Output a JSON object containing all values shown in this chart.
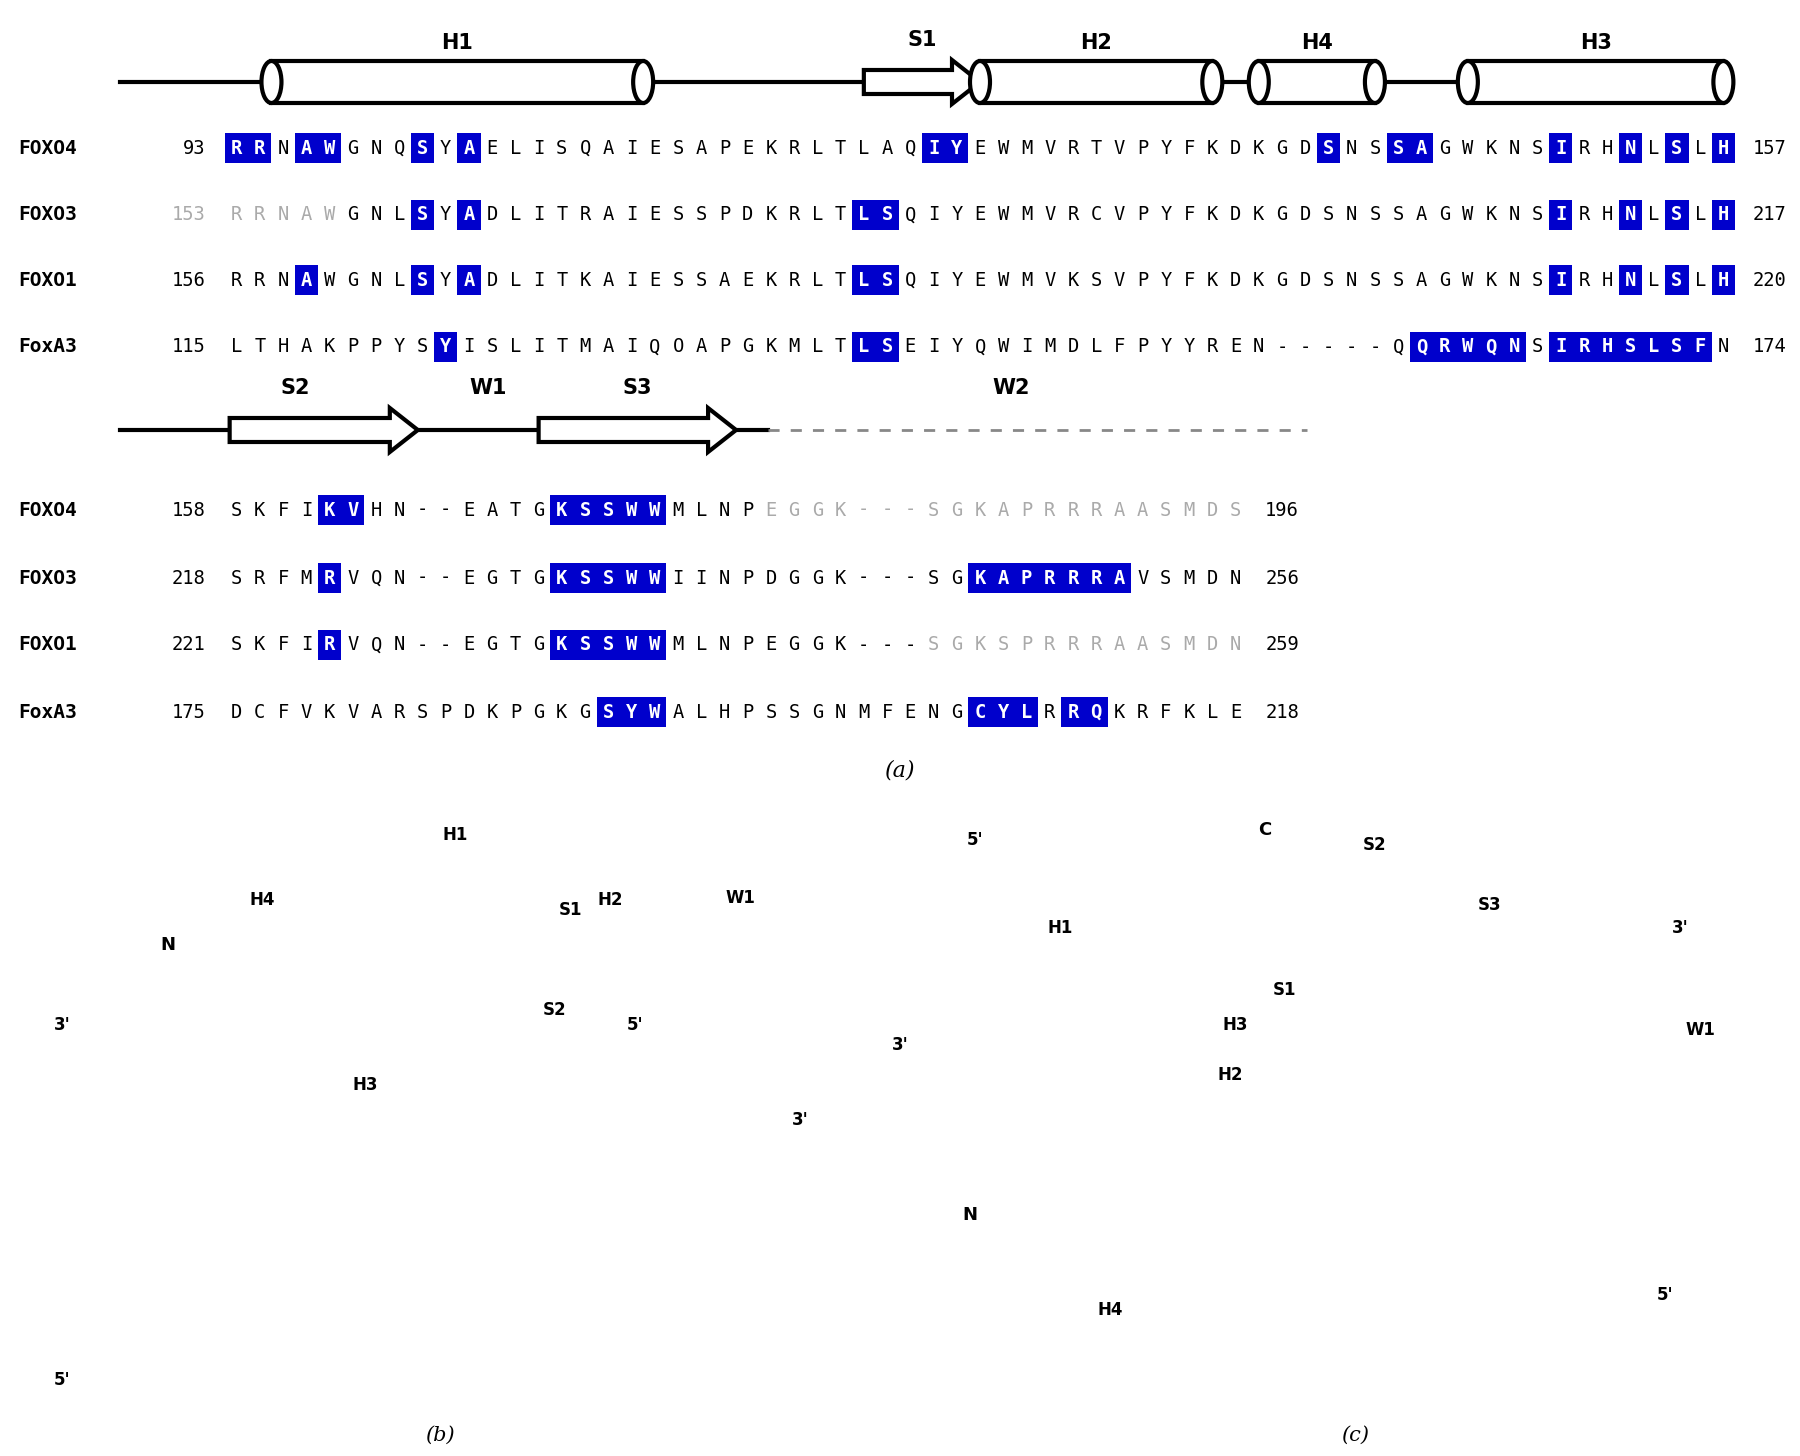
{
  "fig_width": 18.0,
  "fig_height": 14.56,
  "background_color": "#ffffff",
  "row1_seqs": [
    {
      "name": "FOXO4",
      "start": "93",
      "end": "157",
      "seq": "RRNAWGNQSYAELISQAIESAPEKRLTLAQIYEWMVRTVPYFKDKGDSNSSAGWKNSIRHNLSLH",
      "blue": [
        0,
        1,
        3,
        4,
        8,
        10,
        30,
        31,
        47,
        50,
        51,
        57,
        60,
        62,
        64
      ],
      "gray": [],
      "num_gray": false
    },
    {
      "name": "FOXO3",
      "start": "153",
      "end": "217",
      "seq": "RRNAWGNLSYADLITRAIESSPDKRLTLSQIYEWMVRCVPYFKDKGDSNSSAGWKNSIRHNLSLH",
      "blue": [
        8,
        10,
        27,
        28,
        57,
        60,
        62,
        64
      ],
      "gray": [
        0,
        1,
        2,
        3,
        4
      ],
      "num_gray": true
    },
    {
      "name": "FOXO1",
      "start": "156",
      "end": "220",
      "seq": "RRNAWGNLSYADLITKAIESSAEKRLTLSQIYEWMVKSVPYFKDKGDSNSSAGWKNSIRHNLSLH",
      "blue": [
        3,
        8,
        10,
        27,
        28,
        57,
        60,
        62,
        64
      ],
      "gray": [],
      "num_gray": false
    },
    {
      "name": "FoxA3",
      "start": "115",
      "end": "174",
      "seq": "LTHAKPPYSYISLITMAIQOAPGKMLTLSEIYQWIMDLFPYYREN-----QQRWQNSIRHSLSFN",
      "blue": [
        9,
        27,
        28,
        51,
        52,
        53,
        54,
        55,
        57,
        58,
        59,
        60,
        61,
        62,
        63
      ],
      "gray": [],
      "num_gray": false
    }
  ],
  "row2_seqs": [
    {
      "name": "FOXO4",
      "start": "158",
      "end": "196",
      "seq": "SKFIKVHN--EATGKSSWWMLNPEGGK---SGKAPRRRAASMDS",
      "blue": [
        4,
        5,
        14,
        15,
        16,
        17,
        18
      ],
      "gray_from": 23
    },
    {
      "name": "FOXO3",
      "start": "218",
      "end": "256",
      "seq": "SRFMRVQN--EGTGKSSWWIINPDGGK---SGKAPRRRAVSMDN",
      "blue": [
        4,
        14,
        15,
        16,
        17,
        18,
        32,
        33,
        34,
        35,
        36,
        37,
        38
      ],
      "gray_from": 999
    },
    {
      "name": "FOXO1",
      "start": "221",
      "end": "259",
      "seq": "SKFIRVQN--EGTGKSSWWMLNPEGGK---SGKSPRRRAASMDN",
      "blue": [
        4,
        14,
        15,
        16,
        17,
        18
      ],
      "gray_from": 30
    },
    {
      "name": "FoxA3",
      "start": "175",
      "end": "218",
      "seq": "DCFVKVARSPDKPGKGSYWALHPSSGNMFENGCYLRRQKRFKLE",
      "blue": [
        16,
        17,
        18,
        32,
        33,
        34,
        36,
        37
      ],
      "gray_from": 999
    }
  ],
  "blue_bg": "#0000CC",
  "gray_text": "#AAAAAA",
  "num_gray_color": "#AAAAAA"
}
